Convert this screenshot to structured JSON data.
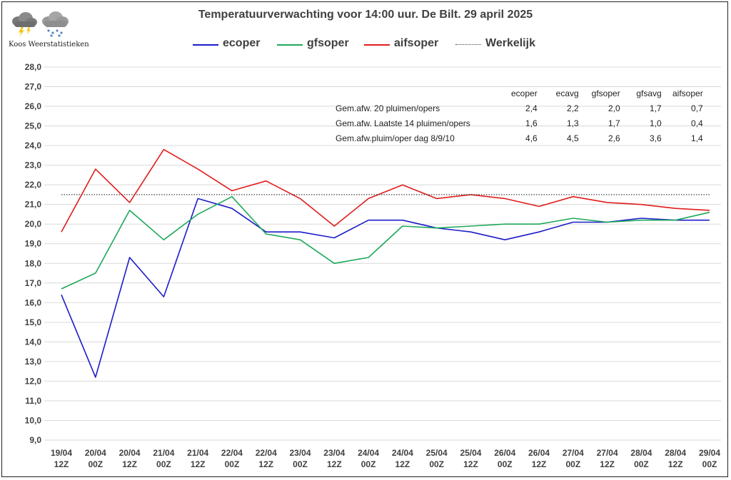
{
  "title": "Temperatuurverwachting voor 14:00 uur. De Bilt. 29 april 2025",
  "logo_text": "Koos Weerstatistieken",
  "colors": {
    "ecoper": "#1c1cc8",
    "gfsoper": "#1ea85a",
    "aifsoper": "#e01c1c",
    "werkelijk": "#404040"
  },
  "legend": [
    {
      "key": "ecoper",
      "label": "ecoper"
    },
    {
      "key": "gfsoper",
      "label": "gfsoper"
    },
    {
      "key": "aifsoper",
      "label": "aifsoper"
    },
    {
      "key": "werkelijk",
      "label": "Werkelijk"
    }
  ],
  "stats": {
    "headers": [
      "ecoper",
      "ecavg",
      "gfsoper",
      "gfsavg",
      "aifsoper"
    ],
    "rows": [
      {
        "label": "Gem.afw. 20 pluimen/opers",
        "values": [
          "2,4",
          "2,2",
          "2,0",
          "1,7",
          "0,7"
        ]
      },
      {
        "label": "Gem.afw. Laatste 14 pluimen/opers",
        "values": [
          "1,6",
          "1,3",
          "1,7",
          "1,0",
          "0,4"
        ]
      },
      {
        "label": "Gem.afw.pluim/oper dag 8/9/10",
        "values": [
          "4,6",
          "4,5",
          "2,6",
          "3,6",
          "1,4"
        ]
      }
    ]
  },
  "chart_data": {
    "type": "line",
    "title": "Temperatuurverwachting voor 14:00 uur. De Bilt. 29 april 2025",
    "xlabel": "",
    "ylabel": "",
    "ylim": [
      9.0,
      28.0
    ],
    "ytick_step": 1.0,
    "ytick_labels": [
      "9,0",
      "10,0",
      "11,0",
      "12,0",
      "13,0",
      "14,0",
      "15,0",
      "16,0",
      "17,0",
      "18,0",
      "19,0",
      "20,0",
      "21,0",
      "22,0",
      "23,0",
      "24,0",
      "25,0",
      "26,0",
      "27,0",
      "28,0"
    ],
    "grid": "horizontal",
    "legend_position": "top",
    "categories": [
      [
        "19/04",
        "12Z"
      ],
      [
        "20/04",
        "00Z"
      ],
      [
        "20/04",
        "12Z"
      ],
      [
        "21/04",
        "00Z"
      ],
      [
        "21/04",
        "12Z"
      ],
      [
        "22/04",
        "00Z"
      ],
      [
        "22/04",
        "12Z"
      ],
      [
        "23/04",
        "00Z"
      ],
      [
        "23/04",
        "12Z"
      ],
      [
        "24/04",
        "00Z"
      ],
      [
        "24/04",
        "12Z"
      ],
      [
        "25/04",
        "00Z"
      ],
      [
        "25/04",
        "12Z"
      ],
      [
        "26/04",
        "00Z"
      ],
      [
        "26/04",
        "12Z"
      ],
      [
        "27/04",
        "00Z"
      ],
      [
        "27/04",
        "12Z"
      ],
      [
        "28/04",
        "00Z"
      ],
      [
        "28/04",
        "12Z"
      ],
      [
        "29/04",
        "00Z"
      ]
    ],
    "series": [
      {
        "key": "ecoper",
        "name": "ecoper",
        "values": [
          16.4,
          12.2,
          18.3,
          16.3,
          21.3,
          20.8,
          19.6,
          19.6,
          19.3,
          20.2,
          20.2,
          19.8,
          19.6,
          19.2,
          19.6,
          20.1,
          20.1,
          20.3,
          20.2,
          20.2
        ]
      },
      {
        "key": "gfsoper",
        "name": "gfsoper",
        "values": [
          16.7,
          17.5,
          20.7,
          19.2,
          20.5,
          21.4,
          19.5,
          19.2,
          18.0,
          18.3,
          19.9,
          19.8,
          19.9,
          20.0,
          20.0,
          20.3,
          20.1,
          20.2,
          20.2,
          20.6
        ]
      },
      {
        "key": "aifsoper",
        "name": "aifsoper",
        "values": [
          19.6,
          22.8,
          21.1,
          23.8,
          22.8,
          21.7,
          22.2,
          21.3,
          19.9,
          21.3,
          22.0,
          21.3,
          21.5,
          21.3,
          20.9,
          21.4,
          21.1,
          21.0,
          20.8,
          20.7
        ]
      },
      {
        "key": "werkelijk",
        "name": "Werkelijk",
        "values": [
          21.5,
          21.5,
          21.5,
          21.5,
          21.5,
          21.5,
          21.5,
          21.5,
          21.5,
          21.5,
          21.5,
          21.5,
          21.5,
          21.5,
          21.5,
          21.5,
          21.5,
          21.5,
          21.5,
          21.5
        ],
        "style": "dotted"
      }
    ]
  }
}
